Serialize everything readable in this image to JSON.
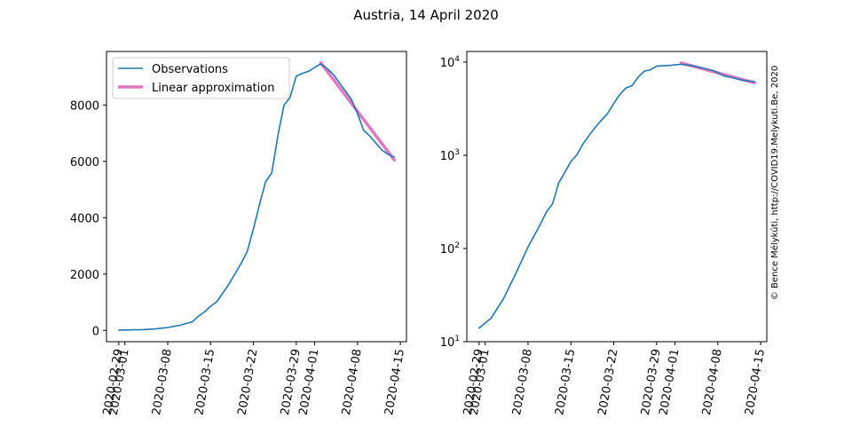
{
  "figure": {
    "title": "Austria, 14 April 2020",
    "watermark": "© Bence Mélykúti, http://COVID19.Melykuti.Be, 2020"
  },
  "colors": {
    "observations": "#1f77b4",
    "approximation": "#e377c2",
    "watermark": "#d0d0d0"
  },
  "chart_data": [
    {
      "type": "line",
      "scale": "linear",
      "x_type": "date",
      "xlim": [
        "2020-02-27",
        "2020-04-16"
      ],
      "ylim": [
        -400,
        9900
      ],
      "xticks": [
        "2020-02-29",
        "2020-03-01",
        "2020-03-08",
        "2020-03-15",
        "2020-03-22",
        "2020-03-29",
        "2020-04-01",
        "2020-04-08",
        "2020-04-15"
      ],
      "yticks": [
        0,
        2000,
        4000,
        6000,
        8000
      ],
      "ytick_labels": [
        "0",
        "2000",
        "4000",
        "6000",
        "8000"
      ],
      "legend": {
        "position": "top-left",
        "entries": [
          {
            "label": "Observations",
            "series": 0
          },
          {
            "label": "Linear approximation",
            "series": 1
          }
        ]
      },
      "series": [
        {
          "name": "Observations",
          "x": [
            "2020-02-29",
            "2020-03-02",
            "2020-03-04",
            "2020-03-06",
            "2020-03-08",
            "2020-03-10",
            "2020-03-11",
            "2020-03-12",
            "2020-03-13",
            "2020-03-14",
            "2020-03-15",
            "2020-03-16",
            "2020-03-17",
            "2020-03-18",
            "2020-03-19",
            "2020-03-20",
            "2020-03-21",
            "2020-03-22",
            "2020-03-23",
            "2020-03-24",
            "2020-03-25",
            "2020-03-26",
            "2020-03-27",
            "2020-03-28",
            "2020-03-29",
            "2020-03-30",
            "2020-03-31",
            "2020-04-01",
            "2020-04-02",
            "2020-04-03",
            "2020-04-04",
            "2020-04-05",
            "2020-04-06",
            "2020-04-07",
            "2020-04-08",
            "2020-04-09",
            "2020-04-10",
            "2020-04-11",
            "2020-04-12",
            "2020-04-13",
            "2020-04-14"
          ],
          "y": [
            14,
            18,
            29,
            54,
            104,
            182,
            246,
            302,
            504,
            655,
            860,
            1018,
            1332,
            1646,
            2013,
            2388,
            2814,
            3611,
            4474,
            5282,
            5588,
            6909,
            7995,
            8271,
            9024,
            9125,
            9193,
            9334,
            9456,
            9300,
            9100,
            8800,
            8500,
            8200,
            7700,
            7100,
            6900,
            6650,
            6400,
            6250,
            6150
          ]
        },
        {
          "name": "Linear approximation",
          "x": [
            "2020-04-02",
            "2020-04-14"
          ],
          "y": [
            9500,
            6050
          ]
        }
      ]
    },
    {
      "type": "line",
      "scale": "log",
      "x_type": "date",
      "xlim": [
        "2020-02-27",
        "2020-04-16"
      ],
      "ylim": [
        10,
        13000
      ],
      "xticks": [
        "2020-02-29",
        "2020-03-01",
        "2020-03-08",
        "2020-03-15",
        "2020-03-22",
        "2020-03-29",
        "2020-04-01",
        "2020-04-08",
        "2020-04-15"
      ],
      "yticks": [
        10,
        100,
        1000,
        10000
      ],
      "ytick_base": "10",
      "ytick_exponents": [
        "1",
        "2",
        "3",
        "4"
      ],
      "series": [
        {
          "name": "Observations",
          "x": [
            "2020-02-29",
            "2020-03-02",
            "2020-03-04",
            "2020-03-06",
            "2020-03-08",
            "2020-03-10",
            "2020-03-11",
            "2020-03-12",
            "2020-03-13",
            "2020-03-14",
            "2020-03-15",
            "2020-03-16",
            "2020-03-17",
            "2020-03-18",
            "2020-03-19",
            "2020-03-20",
            "2020-03-21",
            "2020-03-22",
            "2020-03-23",
            "2020-03-24",
            "2020-03-25",
            "2020-03-26",
            "2020-03-27",
            "2020-03-28",
            "2020-03-29",
            "2020-03-30",
            "2020-03-31",
            "2020-04-01",
            "2020-04-02",
            "2020-04-03",
            "2020-04-04",
            "2020-04-05",
            "2020-04-06",
            "2020-04-07",
            "2020-04-08",
            "2020-04-09",
            "2020-04-10",
            "2020-04-11",
            "2020-04-12",
            "2020-04-13",
            "2020-04-14"
          ],
          "y": [
            14,
            18,
            29,
            54,
            104,
            182,
            246,
            302,
            504,
            655,
            860,
            1018,
            1332,
            1646,
            2013,
            2388,
            2814,
            3611,
            4474,
            5282,
            5588,
            6909,
            7995,
            8271,
            9024,
            9125,
            9193,
            9334,
            9456,
            9300,
            9100,
            8800,
            8500,
            8200,
            7700,
            7100,
            6900,
            6650,
            6400,
            6250,
            6150
          ]
        },
        {
          "name": "Linear approximation",
          "x": [
            "2020-04-02",
            "2020-04-14"
          ],
          "y": [
            9800,
            6000
          ]
        }
      ]
    }
  ]
}
